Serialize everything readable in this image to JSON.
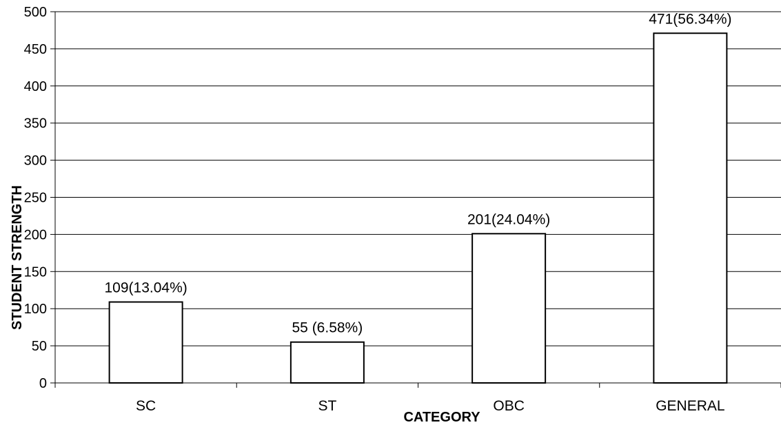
{
  "chart_data": {
    "type": "bar",
    "categories": [
      "SC",
      "ST",
      "OBC",
      "GENERAL"
    ],
    "values": [
      109,
      55,
      201,
      471
    ],
    "data_labels": [
      "109(13.04%)",
      "55 (6.58%)",
      "201(24.04%)",
      "471(56.34%)"
    ],
    "title": "",
    "xlabel": "CATEGORY",
    "ylabel": "STUDENT STRENGTH",
    "ylim": [
      0,
      500
    ],
    "yticks": [
      0,
      50,
      100,
      150,
      200,
      250,
      300,
      350,
      400,
      450,
      500
    ],
    "grid": true,
    "bar_fill": "#ffffff",
    "bar_stroke": "#000000"
  }
}
